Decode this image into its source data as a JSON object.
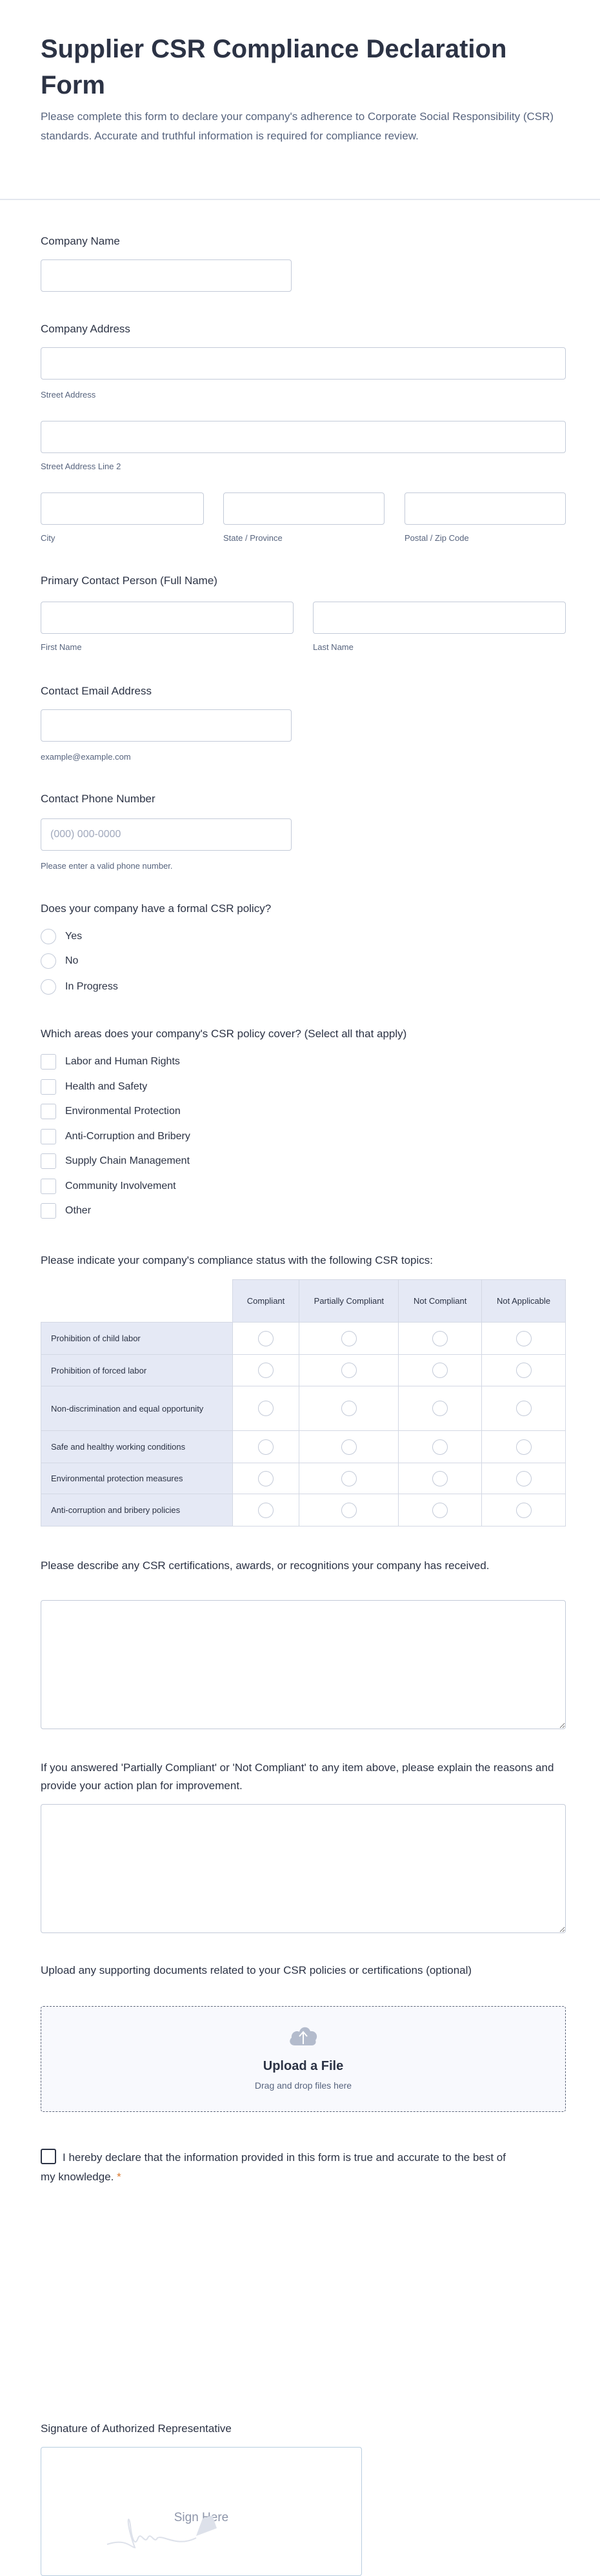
{
  "header": {
    "title": "Supplier CSR Compliance Declaration Form",
    "description": "Please complete this form to declare your company's adherence to Corporate Social Responsibility (CSR) standards. Accurate and truthful information is required for compliance review."
  },
  "company_name": {
    "label": "Company Name",
    "value": ""
  },
  "address": {
    "label": "Company Address",
    "street": "Street Address",
    "street2": "Street Address Line 2",
    "city": "City",
    "state": "State / Province",
    "zip": "Postal / Zip Code"
  },
  "contact": {
    "label": "Primary Contact Person (Full Name)",
    "first": "First Name",
    "last": "Last Name"
  },
  "email": {
    "label": "Contact Email Address",
    "sublabel": "example@example.com"
  },
  "phone": {
    "label": "Contact Phone Number",
    "placeholder": "(000) 000-0000",
    "sublabel": "Please enter a valid phone number."
  },
  "policy": {
    "label": "Does your company have a formal CSR policy?",
    "options": [
      "Yes",
      "No",
      "In Progress"
    ]
  },
  "areas": {
    "label": "Which areas does your company's CSR policy cover? (Select all that apply)",
    "options": [
      "Labor and Human Rights",
      "Health and Safety",
      "Environmental Protection",
      "Anti-Corruption and Bribery",
      "Supply Chain Management",
      "Community Involvement",
      "Other"
    ]
  },
  "matrix": {
    "label": "Please indicate your company's compliance status with the following CSR topics:",
    "columns": [
      "Compliant",
      "Partially Compliant",
      "Not Compliant",
      "Not Applicable"
    ],
    "rows": [
      "Prohibition of child labor",
      "Prohibition of forced labor",
      "Non-discrimination and equal opportunity",
      "Safe and healthy working conditions",
      "Environmental protection measures",
      "Anti-corruption and bribery policies"
    ]
  },
  "certifications": {
    "label": "Please describe any CSR certifications, awards, or recognitions your company has received."
  },
  "improvement": {
    "label": "If you answered 'Partially Compliant' or 'Not Compliant' to any item above, please explain the reasons and provide your action plan for improvement."
  },
  "upload": {
    "label": "Upload any supporting documents related to your CSR policies or certifications (optional)",
    "title": "Upload a File",
    "hint": "Drag and drop files here",
    "icon": "cloud-upload-icon"
  },
  "declaration": {
    "text": "I hereby declare that the information provided in this form is true and accurate to the best of my knowledge.",
    "required_mark": "*"
  },
  "signature": {
    "label": "Signature of Authorized Representative",
    "placeholder": "Sign Here"
  },
  "colors": {
    "text": "#2c3345",
    "muted": "#57647e",
    "border": "#c3cad8",
    "table_header": "#e5e9f5",
    "required": "#d9772b"
  }
}
